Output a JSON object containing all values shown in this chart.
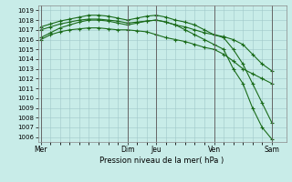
{
  "xlabel": "Pression niveau de la mer( hPa )",
  "ylim": [
    1005.5,
    1019.5
  ],
  "yticks": [
    1006,
    1007,
    1008,
    1009,
    1010,
    1011,
    1012,
    1013,
    1014,
    1015,
    1016,
    1017,
    1018,
    1019
  ],
  "background_color": "#c8ece8",
  "grid_color": "#a0c8c8",
  "line_color": "#1a6b1a",
  "marker": "+",
  "day_labels": [
    "Mer",
    "Dim",
    "Jeu",
    "Ven",
    "Sam"
  ],
  "day_positions": [
    0,
    9,
    12,
    18,
    24
  ],
  "xlim": [
    -0.3,
    25.5
  ],
  "series": [
    {
      "x": [
        0,
        1,
        2,
        3,
        4,
        5,
        6,
        7,
        8,
        9,
        10,
        11,
        12,
        13,
        14,
        15,
        16,
        17,
        18,
        19,
        20,
        21,
        22,
        23,
        24
      ],
      "y": [
        1016.0,
        1016.5,
        1016.8,
        1017.0,
        1017.1,
        1017.2,
        1017.2,
        1017.1,
        1017.0,
        1017.0,
        1016.9,
        1016.8,
        1016.5,
        1016.2,
        1016.0,
        1015.8,
        1015.5,
        1015.2,
        1015.0,
        1014.5,
        1013.8,
        1013.0,
        1012.5,
        1012.0,
        1011.5
      ]
    },
    {
      "x": [
        0,
        1,
        2,
        3,
        4,
        5,
        6,
        7,
        8,
        9,
        10,
        11,
        12,
        13,
        14,
        15,
        16,
        17,
        18,
        19,
        20,
        21,
        22,
        23,
        24
      ],
      "y": [
        1017.0,
        1017.3,
        1017.6,
        1017.8,
        1018.0,
        1018.1,
        1018.1,
        1018.0,
        1017.9,
        1017.7,
        1017.8,
        1017.9,
        1018.0,
        1017.8,
        1017.5,
        1017.3,
        1017.0,
        1016.7,
        1016.5,
        1016.3,
        1016.0,
        1015.5,
        1014.5,
        1013.5,
        1012.8
      ]
    },
    {
      "x": [
        0,
        1,
        2,
        3,
        4,
        5,
        6,
        7,
        8,
        9,
        10,
        11,
        12,
        13,
        14,
        15,
        16,
        17,
        18,
        19,
        20,
        21,
        22,
        23,
        24
      ],
      "y": [
        1017.3,
        1017.6,
        1017.9,
        1018.1,
        1018.3,
        1018.5,
        1018.5,
        1018.4,
        1018.2,
        1018.0,
        1018.2,
        1018.4,
        1018.5,
        1018.3,
        1018.0,
        1017.8,
        1017.5,
        1017.0,
        1016.5,
        1016.2,
        1015.0,
        1013.5,
        1011.5,
        1009.5,
        1007.5
      ]
    },
    {
      "x": [
        0,
        1,
        2,
        3,
        4,
        5,
        6,
        7,
        8,
        9,
        10,
        11,
        12,
        13,
        14,
        15,
        16,
        17,
        18,
        19,
        20,
        21,
        22,
        23,
        24
      ],
      "y": [
        1016.2,
        1016.7,
        1017.2,
        1017.5,
        1017.8,
        1018.0,
        1018.0,
        1017.9,
        1017.7,
        1017.5,
        1017.7,
        1017.9,
        1018.0,
        1017.8,
        1017.5,
        1017.0,
        1016.5,
        1016.0,
        1015.5,
        1015.0,
        1013.0,
        1011.5,
        1009.0,
        1007.0,
        1005.8
      ]
    }
  ]
}
